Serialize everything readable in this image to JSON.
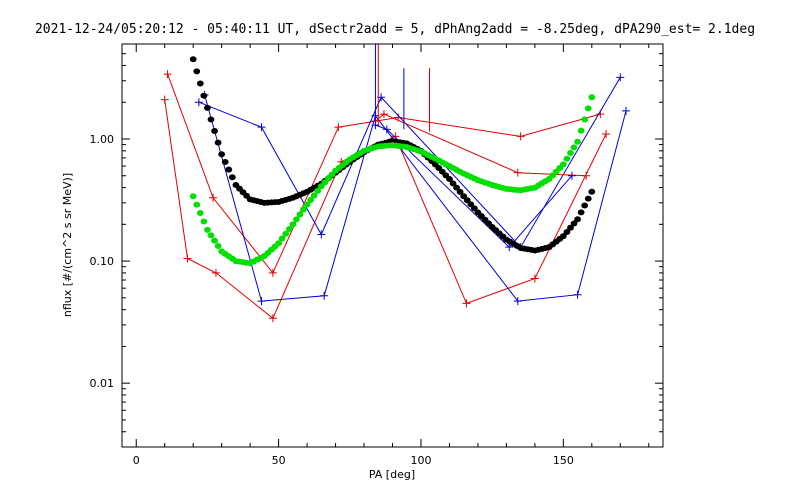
{
  "chart_data": {
    "type": "scatter",
    "title": "2021-12-24/05:20:12 - 05:40:11 UT, dSectr2add = 5, dPhAng2add = -8.25deg, dPA290_est=   2.1deg",
    "xlabel": "PA [deg]",
    "ylabel": "nflux [#/(cm^2 s sr MeV)]",
    "xlim": [
      -5,
      185
    ],
    "ylim": [
      0.003,
      6.0
    ],
    "yscale": "log",
    "x_ticks": [
      0,
      50,
      100,
      150
    ],
    "x_tick_labels": [
      "0",
      "50",
      "100",
      "150"
    ],
    "y_ticks": [
      0.01,
      0.1,
      1.0
    ],
    "y_tick_labels": [
      "0.01",
      "0.10",
      "1.00"
    ],
    "colors": {
      "red": "#e00000",
      "blue": "#0000d8",
      "black": "#000000",
      "green": "#00e000"
    },
    "series": [
      {
        "color": "red",
        "style": "line+plus",
        "x": [
          10,
          18,
          28,
          48,
          72,
          91,
          116,
          140,
          165
        ],
        "y": [
          2.1,
          0.105,
          0.08,
          0.034,
          0.65,
          1.05,
          0.045,
          0.072,
          1.1
        ]
      },
      {
        "color": "red",
        "style": "line+plus",
        "x": [
          11,
          27,
          48,
          71,
          92,
          135,
          163
        ],
        "y": [
          3.4,
          0.33,
          0.08,
          1.25,
          1.5,
          1.05,
          1.6
        ]
      },
      {
        "color": "blue",
        "style": "line+plus",
        "x": [
          22,
          44,
          65,
          86,
          135,
          170
        ],
        "y": [
          2.0,
          1.25,
          0.165,
          2.2,
          0.13,
          3.2
        ]
      },
      {
        "color": "blue",
        "style": "line+plus",
        "x": [
          24,
          44,
          66,
          84,
          134,
          155,
          172
        ],
        "y": [
          2.3,
          0.047,
          0.052,
          1.55,
          0.047,
          0.053,
          1.7
        ]
      },
      {
        "color": "red",
        "style": "line+plus",
        "x": [
          84,
          87,
          134,
          158
        ],
        "y": [
          1.4,
          1.6,
          0.53,
          0.5
        ]
      },
      {
        "color": "blue",
        "style": "line+plus",
        "x": [
          84,
          88,
          131,
          153
        ],
        "y": [
          1.3,
          1.2,
          0.13,
          0.5
        ]
      },
      {
        "color": "black",
        "style": "thick-dots",
        "x": [
          20,
          25,
          30,
          35,
          40,
          45,
          50,
          55,
          60,
          65,
          70,
          75,
          80,
          85,
          90,
          95,
          100,
          105,
          110,
          115,
          120,
          125,
          130,
          135,
          140,
          145,
          150,
          155,
          160
        ],
        "y": [
          4.5,
          1.8,
          0.75,
          0.42,
          0.32,
          0.3,
          0.305,
          0.33,
          0.37,
          0.43,
          0.53,
          0.65,
          0.78,
          0.9,
          0.96,
          0.92,
          0.8,
          0.62,
          0.47,
          0.34,
          0.25,
          0.19,
          0.15,
          0.128,
          0.122,
          0.13,
          0.16,
          0.22,
          0.37
        ]
      },
      {
        "color": "green",
        "style": "thick-dots",
        "x": [
          20,
          25,
          30,
          35,
          40,
          45,
          50,
          55,
          60,
          65,
          70,
          75,
          80,
          85,
          90,
          95,
          100,
          105,
          110,
          115,
          120,
          125,
          130,
          135,
          140,
          145,
          150,
          155,
          160
        ],
        "y": [
          0.34,
          0.18,
          0.12,
          0.1,
          0.096,
          0.11,
          0.14,
          0.2,
          0.29,
          0.41,
          0.55,
          0.68,
          0.8,
          0.87,
          0.89,
          0.86,
          0.79,
          0.69,
          0.6,
          0.52,
          0.46,
          0.42,
          0.39,
          0.38,
          0.4,
          0.47,
          0.62,
          0.95,
          2.2
        ]
      }
    ],
    "vertical_lines": [
      {
        "x": 84,
        "y_from": 6.0,
        "y_to": 1.3,
        "color": "blue"
      },
      {
        "x": 85,
        "y_from": 6.0,
        "y_to": 1.3,
        "color": "red"
      },
      {
        "x": 94,
        "y_from": 3.8,
        "y_to": 1.2,
        "color": "blue"
      },
      {
        "x": 103,
        "y_from": 3.8,
        "y_to": 1.15,
        "color": "red"
      }
    ]
  }
}
